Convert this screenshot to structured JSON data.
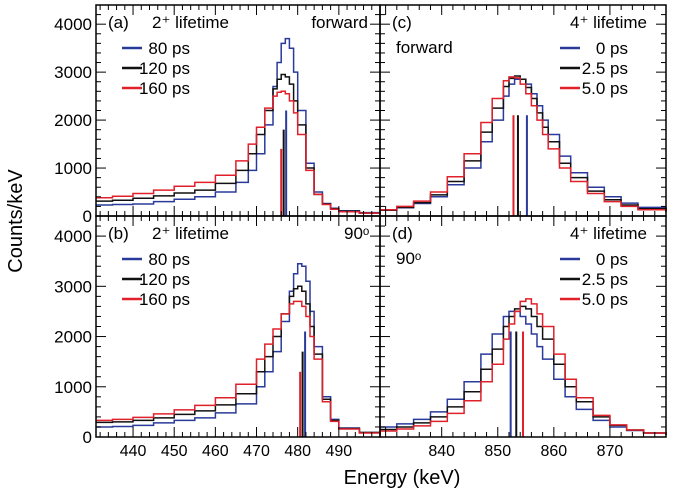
{
  "figure": {
    "ylabel": "Counts/keV",
    "xlabel": "Energy (keV)"
  },
  "chart_data": [
    {
      "type": "line",
      "panel": "(a)",
      "title": "2⁺ lifetime",
      "annotation": "forward",
      "xlim": [
        431,
        500
      ],
      "ylim": [
        0,
        4400
      ],
      "xticks": [
        440,
        450,
        460,
        470,
        480,
        490
      ],
      "yticks": [
        0,
        1000,
        2000,
        3000,
        4000
      ],
      "legend": "top-left",
      "x": [
        431,
        435,
        440,
        445,
        450,
        455,
        460,
        465,
        468,
        470,
        472,
        474,
        475,
        476,
        477,
        478,
        479,
        480,
        482,
        484,
        486,
        488,
        490,
        495,
        500
      ],
      "series": [
        {
          "name": "80 ps",
          "color": "#2a3a9a",
          "values": [
            230,
            240,
            250,
            300,
            350,
            400,
            500,
            700,
            950,
            1300,
            1900,
            2700,
            3200,
            3600,
            3700,
            3500,
            3000,
            2200,
            1100,
            500,
            260,
            160,
            110,
            70,
            40
          ]
        },
        {
          "name": "120 ps",
          "color": "#111111",
          "values": [
            310,
            330,
            370,
            420,
            480,
            540,
            680,
            950,
            1300,
            1700,
            2200,
            2650,
            2850,
            2950,
            2900,
            2750,
            2400,
            1900,
            1000,
            450,
            250,
            150,
            100,
            60,
            40
          ]
        },
        {
          "name": "160 ps",
          "color": "#e0202a",
          "values": [
            380,
            410,
            470,
            540,
            620,
            700,
            850,
            1150,
            1500,
            1850,
            2250,
            2500,
            2580,
            2600,
            2550,
            2400,
            2150,
            1700,
            950,
            450,
            240,
            140,
            90,
            60,
            40
          ]
        }
      ],
      "markers": [
        {
          "x": 476.0,
          "height": 1400,
          "color": "#e0202a"
        },
        {
          "x": 476.6,
          "height": 1800,
          "color": "#111111"
        },
        {
          "x": 477.2,
          "height": 2200,
          "color": "#2a3a9a"
        }
      ]
    },
    {
      "type": "line",
      "panel": "(c)",
      "title": "4⁺ lifetime",
      "annotation": "forward",
      "xlim": [
        829,
        880
      ],
      "ylim": [
        0,
        4400
      ],
      "xticks": [
        840,
        850,
        860,
        870
      ],
      "yticks": [
        0,
        1000,
        2000,
        3000,
        4000
      ],
      "legend": "top-right",
      "x": [
        829,
        832,
        835,
        838,
        841,
        844,
        847,
        849,
        851,
        852,
        853,
        854,
        855,
        856,
        857,
        858,
        859,
        861,
        863,
        866,
        869,
        872,
        875,
        880
      ],
      "series": [
        {
          "name": "0 ps",
          "color": "#2a3a9a",
          "values": [
            120,
            170,
            260,
            400,
            650,
            1000,
            1550,
            2000,
            2500,
            2750,
            2850,
            2850,
            2750,
            2550,
            2300,
            2000,
            1700,
            1250,
            900,
            600,
            400,
            270,
            180,
            100
          ]
        },
        {
          "name": "2.5 ps",
          "color": "#111111",
          "values": [
            120,
            180,
            280,
            440,
            720,
            1150,
            1750,
            2250,
            2700,
            2870,
            2920,
            2850,
            2680,
            2450,
            2150,
            1850,
            1550,
            1100,
            800,
            520,
            340,
            230,
            150,
            90
          ]
        },
        {
          "name": "5.0 ps",
          "color": "#e0202a",
          "values": [
            130,
            200,
            310,
            500,
            820,
            1300,
            1950,
            2450,
            2820,
            2900,
            2880,
            2750,
            2550,
            2300,
            2000,
            1700,
            1400,
            1000,
            720,
            470,
            300,
            200,
            130,
            80
          ]
        }
      ],
      "markers": [
        {
          "x": 852.8,
          "height": 2100,
          "color": "#e0202a"
        },
        {
          "x": 853.6,
          "height": 2100,
          "color": "#111111"
        },
        {
          "x": 855.2,
          "height": 2100,
          "color": "#2a3a9a"
        }
      ]
    },
    {
      "type": "line",
      "panel": "(b)",
      "title": "2⁺ lifetime",
      "annotation": "90ᵒ",
      "xlim": [
        431,
        500
      ],
      "ylim": [
        0,
        4400
      ],
      "xticks": [
        440,
        450,
        460,
        470,
        480,
        490
      ],
      "yticks": [
        0,
        1000,
        2000,
        3000,
        4000
      ],
      "legend": "top-left",
      "x": [
        431,
        435,
        440,
        445,
        450,
        455,
        460,
        465,
        470,
        472,
        474,
        476,
        478,
        479,
        480,
        481,
        482,
        483,
        484,
        486,
        488,
        490,
        495,
        500
      ],
      "series": [
        {
          "name": "80 ps",
          "color": "#2a3a9a",
          "values": [
            200,
            210,
            230,
            280,
            330,
            380,
            480,
            660,
            1000,
            1300,
            1700,
            2300,
            2900,
            3250,
            3450,
            3400,
            3100,
            2500,
            1800,
            800,
            350,
            180,
            90,
            50
          ]
        },
        {
          "name": "120 ps",
          "color": "#111111",
          "values": [
            290,
            300,
            330,
            380,
            450,
            520,
            640,
            860,
            1300,
            1600,
            2000,
            2450,
            2800,
            2950,
            3000,
            2900,
            2650,
            2200,
            1650,
            750,
            330,
            170,
            90,
            50
          ]
        },
        {
          "name": "160 ps",
          "color": "#e0202a",
          "values": [
            330,
            350,
            390,
            460,
            540,
            630,
            780,
            1050,
            1550,
            1850,
            2150,
            2450,
            2650,
            2700,
            2700,
            2600,
            2400,
            2000,
            1550,
            700,
            310,
            160,
            80,
            40
          ]
        }
      ],
      "markers": [
        {
          "x": 480.6,
          "height": 1300,
          "color": "#e0202a"
        },
        {
          "x": 481.2,
          "height": 1700,
          "color": "#111111"
        },
        {
          "x": 481.8,
          "height": 2100,
          "color": "#2a3a9a"
        }
      ]
    },
    {
      "type": "line",
      "panel": "(d)",
      "title": "4⁺ lifetime",
      "annotation": "90ᵒ",
      "xlim": [
        829,
        880
      ],
      "ylim": [
        0,
        4400
      ],
      "xticks": [
        840,
        850,
        860,
        870
      ],
      "yticks": [
        0,
        1000,
        2000,
        3000,
        4000
      ],
      "legend": "top-right",
      "x": [
        829,
        832,
        835,
        838,
        841,
        844,
        847,
        849,
        851,
        852,
        853,
        854,
        855,
        856,
        857,
        858,
        860,
        862,
        864,
        867,
        870,
        873,
        876,
        880
      ],
      "series": [
        {
          "name": "0 ps",
          "color": "#2a3a9a",
          "values": [
            200,
            260,
            350,
            500,
            750,
            1100,
            1650,
            2050,
            2400,
            2500,
            2500,
            2400,
            2250,
            2050,
            1800,
            1550,
            1150,
            800,
            550,
            330,
            200,
            130,
            80,
            40
          ]
        },
        {
          "name": "2.5 ps",
          "color": "#111111",
          "values": [
            150,
            200,
            280,
            400,
            600,
            900,
            1350,
            1750,
            2200,
            2400,
            2550,
            2600,
            2550,
            2400,
            2200,
            1950,
            1450,
            1000,
            700,
            400,
            230,
            140,
            80,
            40
          ]
        },
        {
          "name": "5.0 ps",
          "color": "#e0202a",
          "values": [
            120,
            160,
            220,
            310,
            470,
            720,
            1100,
            1450,
            1950,
            2250,
            2500,
            2700,
            2750,
            2650,
            2450,
            2200,
            1650,
            1150,
            780,
            430,
            240,
            140,
            80,
            40
          ]
        }
      ],
      "markers": [
        {
          "x": 852.3,
          "height": 2100,
          "color": "#2a3a9a"
        },
        {
          "x": 853.3,
          "height": 2100,
          "color": "#111111"
        },
        {
          "x": 854.5,
          "height": 2100,
          "color": "#e0202a"
        }
      ]
    }
  ]
}
